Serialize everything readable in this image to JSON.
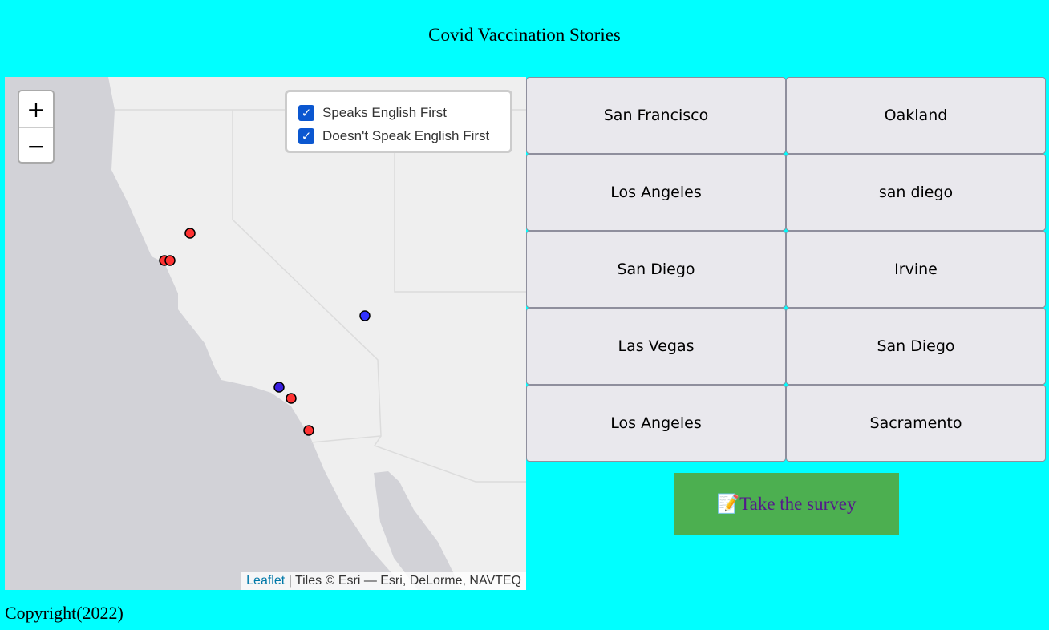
{
  "page_title": "Covid Vaccination Stories",
  "map": {
    "zoom_in": "+",
    "zoom_out": "−",
    "layers": [
      {
        "label": "Speaks English First",
        "checked": true
      },
      {
        "label": "Doesn't Speak English First",
        "checked": true
      }
    ],
    "attribution_link": "Leaflet",
    "attribution_text": " | Tiles © Esri — Esri, DeLorme, NAVTEQ",
    "colors": {
      "land": "#efefef",
      "ocean": "#d2d2d7",
      "red_marker": "#ff3333",
      "blue_marker": "#3333ff",
      "purple_marker": "#3a1ee0"
    },
    "markers": [
      {
        "color": "red"
      },
      {
        "color": "red"
      },
      {
        "color": "red"
      },
      {
        "color": "blue"
      },
      {
        "color": "purple"
      },
      {
        "color": "red"
      },
      {
        "color": "red"
      }
    ]
  },
  "cities": [
    "San Francisco",
    "Oakland",
    "Los Angeles",
    "san diego",
    "San Diego",
    "Irvine",
    "Las Vegas",
    "San Diego",
    "Los Angeles",
    "Sacramento"
  ],
  "survey": {
    "icon": "📝",
    "label": "Take the survey"
  },
  "footer": "Copyright(2022)"
}
